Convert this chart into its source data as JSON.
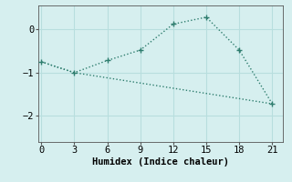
{
  "xlabel": "Humidex (Indice chaleur)",
  "background_color": "#d6efef",
  "line1_x": [
    0,
    3,
    6,
    9,
    12,
    15,
    18,
    21
  ],
  "line1_y": [
    -0.75,
    -1.0,
    -0.72,
    -0.48,
    0.12,
    0.28,
    -0.48,
    -1.72
  ],
  "line2_x": [
    0,
    3,
    21
  ],
  "line2_y": [
    -0.75,
    -1.0,
    -1.72
  ],
  "line_color": "#2e7d6e",
  "xlim": [
    -0.3,
    22
  ],
  "ylim": [
    -2.6,
    0.55
  ],
  "xticks": [
    0,
    3,
    6,
    9,
    12,
    15,
    18,
    21
  ],
  "yticks": [
    -2,
    -1,
    0
  ],
  "grid_color": "#b8dede",
  "marker": "+",
  "markersize": 5,
  "linewidth": 1.0
}
